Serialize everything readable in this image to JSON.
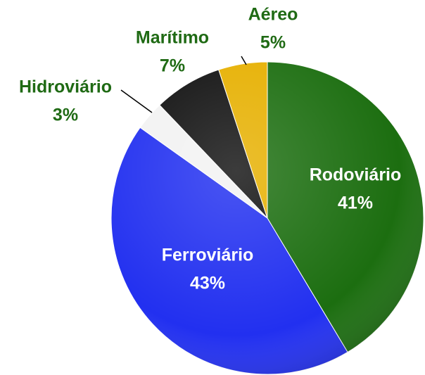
{
  "chart_data": {
    "type": "pie",
    "categories": [
      "Rodoviário",
      "Ferroviário",
      "Hidroviário",
      "Marítimo",
      "Aéreo"
    ],
    "values": [
      41,
      43,
      3,
      7,
      5
    ],
    "value_labels": [
      "41%",
      "43%",
      "3%",
      "7%",
      "5%"
    ],
    "colors": [
      "#1c6e10",
      "#2230f0",
      "#f2f2f2",
      "#111111",
      "#e6b000"
    ]
  }
}
